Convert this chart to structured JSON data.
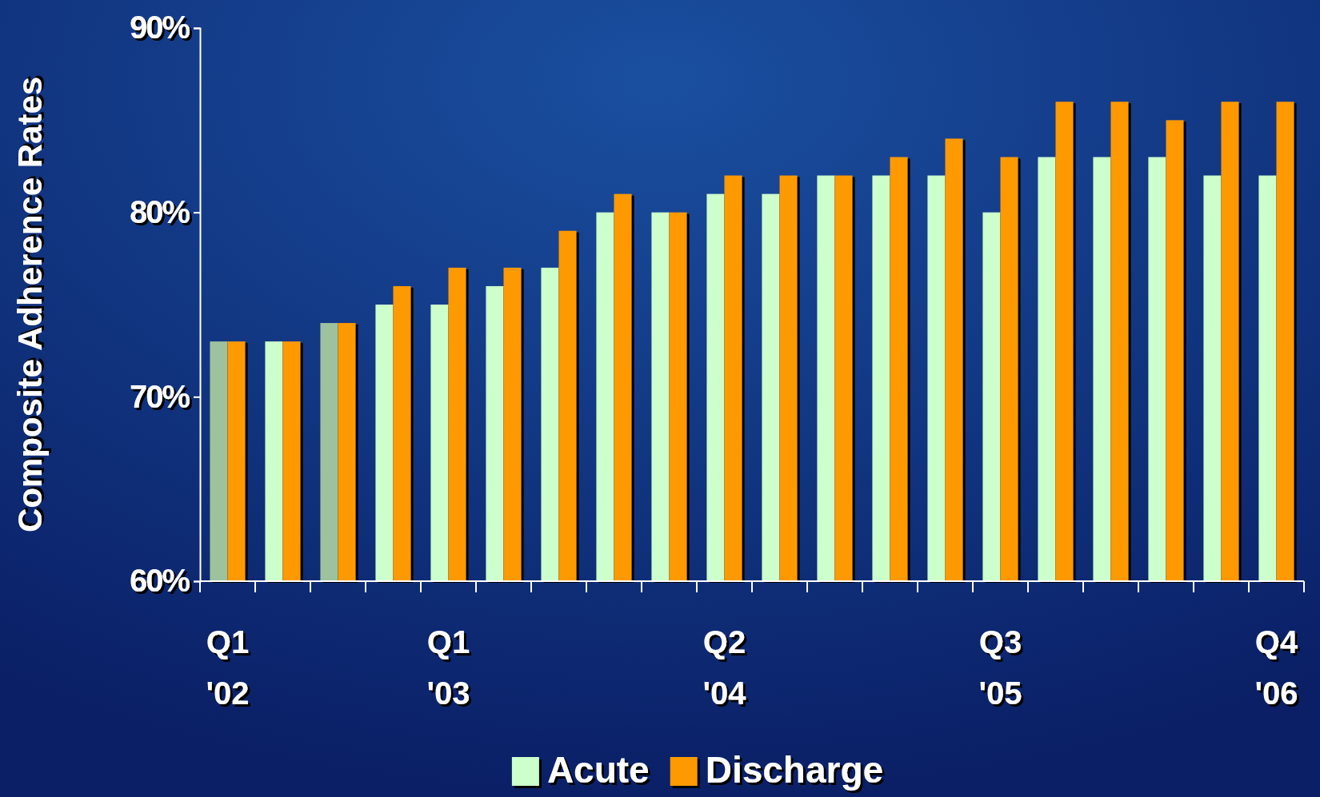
{
  "chart_data": {
    "type": "bar",
    "ylabel": "Composite Adherence Rates",
    "categories": [
      "Q1\n'02",
      null,
      null,
      null,
      "Q1\n'03",
      null,
      null,
      null,
      null,
      "Q2\n'04",
      null,
      null,
      null,
      null,
      "Q3\n'05",
      null,
      null,
      null,
      null,
      "Q4\n'06"
    ],
    "series": [
      {
        "name": "Acute",
        "color": "#ccffcc",
        "colors": [
          "#9dc29d",
          "#ccffcc",
          "#9dc29d",
          "#ccffcc",
          "#ccffcc",
          "#ccffcc",
          "#ccffcc",
          "#ccffcc",
          "#ccffcc",
          "#ccffcc",
          "#ccffcc",
          "#ccffcc",
          "#ccffcc",
          "#ccffcc",
          "#ccffcc",
          "#ccffcc",
          "#ccffcc",
          "#ccffcc",
          "#ccffcc",
          "#ccffcc"
        ],
        "values": [
          73,
          73,
          74,
          75,
          75,
          76,
          77,
          80,
          80,
          81,
          81,
          82,
          82,
          82,
          80,
          83,
          83,
          83,
          82,
          82
        ]
      },
      {
        "name": "Discharge",
        "color": "#ff9900",
        "values": [
          73,
          73,
          74,
          76,
          77,
          77,
          79,
          81,
          80,
          82,
          82,
          82,
          83,
          84,
          83,
          86,
          86,
          85,
          86,
          86
        ]
      }
    ],
    "ylim": [
      60,
      90
    ],
    "yticks": [
      {
        "value": 60,
        "label": "60%"
      },
      {
        "value": 70,
        "label": "70%"
      },
      {
        "value": 80,
        "label": "80%"
      },
      {
        "value": 90,
        "label": "90%"
      }
    ],
    "grid": false,
    "legend": "bottom"
  }
}
